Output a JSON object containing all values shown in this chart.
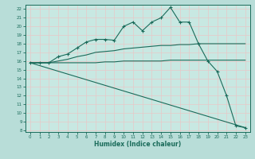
{
  "xlabel": "Humidex (Indice chaleur)",
  "xlim": [
    -0.5,
    23.5
  ],
  "ylim": [
    7.8,
    22.5
  ],
  "xticks": [
    0,
    1,
    2,
    3,
    4,
    5,
    6,
    7,
    8,
    9,
    10,
    11,
    12,
    13,
    14,
    15,
    16,
    17,
    18,
    19,
    20,
    21,
    22,
    23
  ],
  "yticks": [
    8,
    9,
    10,
    11,
    12,
    13,
    14,
    15,
    16,
    17,
    18,
    19,
    20,
    21,
    22
  ],
  "bg_color": "#b8ddd8",
  "plot_bg_color": "#c8e8e2",
  "line_color": "#1a6b5a",
  "grid_color": "#e8c8c8",
  "curve1_x": [
    0,
    1,
    2,
    3,
    4,
    5,
    6,
    7,
    8,
    9,
    10,
    11,
    12,
    13,
    14,
    15,
    16,
    17,
    18,
    19,
    20,
    21,
    22,
    23
  ],
  "curve1_y": [
    15.8,
    15.8,
    15.8,
    16.5,
    16.8,
    17.5,
    18.2,
    18.5,
    18.5,
    18.4,
    20.0,
    20.5,
    19.5,
    20.5,
    21.0,
    22.2,
    20.5,
    20.5,
    18.0,
    16.0,
    14.8,
    12.0,
    8.5,
    8.3
  ],
  "curve2_x": [
    0,
    1,
    2,
    3,
    4,
    5,
    6,
    7,
    8,
    9,
    10,
    11,
    12,
    13,
    14,
    15,
    16,
    17,
    18,
    19,
    20,
    21,
    22,
    23
  ],
  "curve2_y": [
    15.8,
    15.8,
    15.8,
    16.0,
    16.2,
    16.5,
    16.7,
    17.0,
    17.1,
    17.2,
    17.4,
    17.5,
    17.6,
    17.7,
    17.8,
    17.8,
    17.9,
    17.9,
    18.0,
    18.0,
    18.0,
    18.0,
    18.0,
    18.0
  ],
  "curve3_x": [
    0,
    23
  ],
  "curve3_y": [
    15.8,
    8.3
  ],
  "curve4_x": [
    0,
    1,
    2,
    3,
    4,
    5,
    6,
    7,
    8,
    9,
    10,
    11,
    12,
    13,
    14,
    15,
    16,
    17,
    18,
    19,
    20,
    21,
    22,
    23
  ],
  "curve4_y": [
    15.8,
    15.8,
    15.8,
    15.8,
    15.8,
    15.8,
    15.8,
    15.8,
    15.9,
    15.9,
    16.0,
    16.0,
    16.0,
    16.0,
    16.0,
    16.1,
    16.1,
    16.1,
    16.1,
    16.1,
    16.1,
    16.1,
    16.1,
    16.1
  ]
}
